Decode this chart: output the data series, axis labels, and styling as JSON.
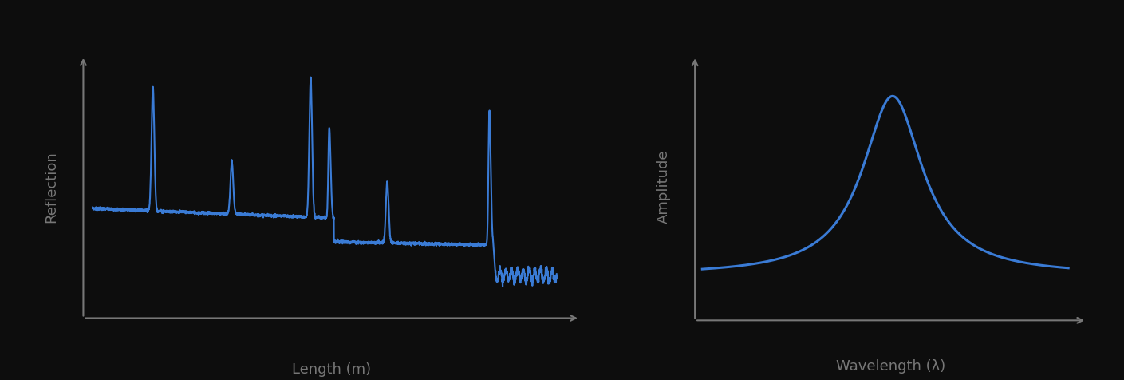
{
  "background_color": "#0d0d0d",
  "line_color": "#3a7bd5",
  "axis_color": "#777777",
  "label_color": "#777777",
  "label_fontsize": 13,
  "left_xlabel": "Length (m)",
  "left_ylabel": "Reflection",
  "right_xlabel": "Wavelength (λ)",
  "right_ylabel": "Amplitude",
  "fig_width": 14.09,
  "fig_height": 4.77
}
